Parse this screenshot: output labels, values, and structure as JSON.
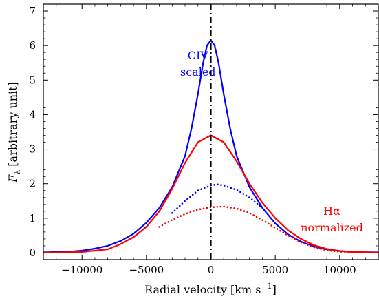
{
  "chart_data": {
    "type": "line",
    "xlabel_text": "Radial velocity [km s",
    "xlabel_sup": "−1",
    "xlabel_close": "]",
    "ylabel_var": "F",
    "ylabel_sub": "λ",
    "ylabel_rest": " [arbitrary unit]",
    "xlim": [
      -13000,
      13000
    ],
    "ylim": [
      -0.2,
      7.2
    ],
    "xticks": [
      -10000,
      -5000,
      0,
      5000,
      10000
    ],
    "xtick_labels": [
      "−10000",
      "−5000",
      "0",
      "5000",
      "10000"
    ],
    "yticks": [
      0,
      1,
      2,
      3,
      4,
      5,
      6,
      7
    ],
    "ytick_labels": [
      "0",
      "1",
      "2",
      "3",
      "4",
      "5",
      "6",
      "7"
    ],
    "grid": false,
    "vertical_line": {
      "x": 0,
      "style": "dash-dot",
      "color": "#000000"
    },
    "annotations": [
      {
        "lines": [
          "CIV",
          "scaled"
        ],
        "color": "#0000ff",
        "x": -1000,
        "y": 5.6
      },
      {
        "lines": [
          "Hα",
          "normalized"
        ],
        "color": "#ff0000",
        "x": 9400,
        "y": 1.1
      }
    ],
    "series": [
      {
        "color": "#0000ff",
        "style": "solid",
        "points": [
          [
            -13000,
            0.01
          ],
          [
            -11000,
            0.03
          ],
          [
            -10000,
            0.06
          ],
          [
            -9000,
            0.12
          ],
          [
            -8000,
            0.2
          ],
          [
            -7000,
            0.34
          ],
          [
            -6000,
            0.55
          ],
          [
            -5000,
            0.87
          ],
          [
            -4000,
            1.3
          ],
          [
            -3000,
            1.9
          ],
          [
            -2000,
            2.8
          ],
          [
            -1500,
            3.6
          ],
          [
            -1000,
            4.6
          ],
          [
            -600,
            5.5
          ],
          [
            -300,
            6.0
          ],
          [
            0,
            6.15
          ],
          [
            300,
            6.0
          ],
          [
            600,
            5.5
          ],
          [
            1000,
            4.6
          ],
          [
            1500,
            3.6
          ],
          [
            2000,
            2.8
          ],
          [
            3000,
            1.9
          ],
          [
            4000,
            1.3
          ],
          [
            5000,
            0.85
          ],
          [
            6000,
            0.53
          ],
          [
            7000,
            0.32
          ],
          [
            8000,
            0.18
          ],
          [
            9000,
            0.1
          ],
          [
            10000,
            0.05
          ],
          [
            11000,
            0.02
          ],
          [
            13000,
            0.01
          ]
        ]
      },
      {
        "color": "#ff0000",
        "style": "solid",
        "points": [
          [
            -13000,
            0.0
          ],
          [
            -10000,
            0.02
          ],
          [
            -8000,
            0.1
          ],
          [
            -7000,
            0.25
          ],
          [
            -6000,
            0.45
          ],
          [
            -5000,
            0.75
          ],
          [
            -4000,
            1.2
          ],
          [
            -3000,
            1.85
          ],
          [
            -2000,
            2.6
          ],
          [
            -1000,
            3.2
          ],
          [
            0,
            3.4
          ],
          [
            1000,
            3.2
          ],
          [
            2000,
            2.65
          ],
          [
            3000,
            2.0
          ],
          [
            4000,
            1.45
          ],
          [
            5000,
            1.0
          ],
          [
            6000,
            0.65
          ],
          [
            7000,
            0.4
          ],
          [
            8000,
            0.22
          ],
          [
            9000,
            0.11
          ],
          [
            10000,
            0.05
          ],
          [
            11000,
            0.02
          ],
          [
            13000,
            0.0
          ]
        ]
      },
      {
        "color": "#0000ff",
        "style": "dotted",
        "points": [
          [
            -3000,
            1.15
          ],
          [
            -2000,
            1.5
          ],
          [
            -1000,
            1.8
          ],
          [
            0,
            1.95
          ],
          [
            500,
            1.98
          ],
          [
            1000,
            1.95
          ],
          [
            2000,
            1.82
          ],
          [
            3000,
            1.6
          ],
          [
            4000,
            1.3
          ]
        ]
      },
      {
        "color": "#ff0000",
        "style": "dotted",
        "points": [
          [
            -4000,
            0.75
          ],
          [
            -3000,
            0.95
          ],
          [
            -2000,
            1.12
          ],
          [
            -1000,
            1.25
          ],
          [
            0,
            1.32
          ],
          [
            1000,
            1.34
          ],
          [
            2000,
            1.28
          ],
          [
            3000,
            1.15
          ],
          [
            4000,
            0.95
          ],
          [
            5000,
            0.72
          ],
          [
            6000,
            0.5
          ],
          [
            7000,
            0.3
          ],
          [
            8000,
            0.16
          ],
          [
            9000,
            0.07
          ],
          [
            10000,
            0.03
          ],
          [
            13000,
            0.0
          ]
        ]
      }
    ]
  }
}
